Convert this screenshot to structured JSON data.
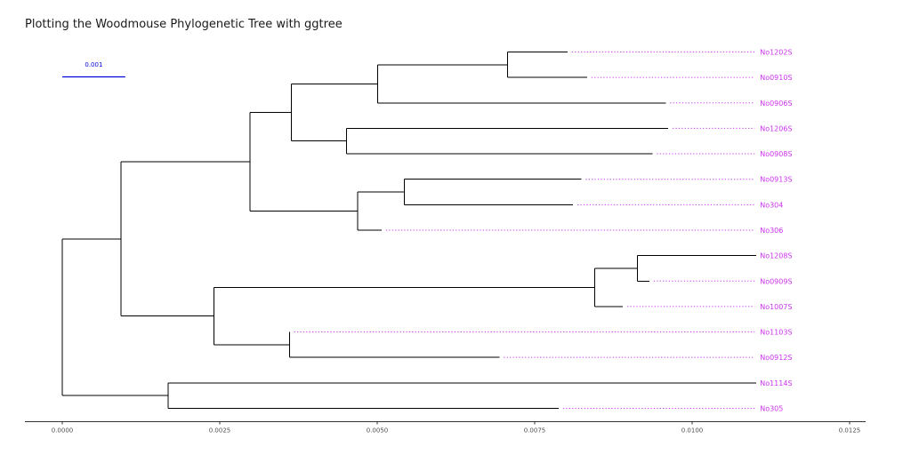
{
  "title": "Plotting the Woodmouse Phylogenetic Tree with ggtree",
  "colors": {
    "tip_label": "#cc33ee",
    "edge": "#000000",
    "scale_bar": "#0000dd",
    "axis": "#333333"
  },
  "scale_bar": {
    "label": "0.001",
    "length": 0.001
  },
  "x_axis": {
    "ticks": [
      0,
      0.0025,
      0.005,
      0.0075,
      0.01,
      0.0125
    ],
    "tick_labels": [
      "0.0000",
      "0.0025",
      "0.0050",
      "0.0075",
      "0.0100",
      "0.0125"
    ],
    "range": [
      0,
      0.0127
    ]
  },
  "chart_data": {
    "type": "phylogenetic-tree",
    "tips": [
      "No1202S",
      "No0910S",
      "No0906S",
      "No1206S",
      "No0908S",
      "No0913S",
      "No304",
      "No306",
      "No1208S",
      "No0909S",
      "No1007S",
      "No1103S",
      "No0912S",
      "No1114S",
      "No305"
    ],
    "align_x": 0.01102,
    "nodes": [
      {
        "id": "root",
        "parent": null,
        "x": 0.0
      },
      {
        "id": "A",
        "parent": "root",
        "x": 0.00093
      },
      {
        "id": "B",
        "parent": "A",
        "x": 0.00298
      },
      {
        "id": "C",
        "parent": "B",
        "x": 0.00364
      },
      {
        "id": "D",
        "parent": "C",
        "x": 0.00501
      },
      {
        "id": "E",
        "parent": "D",
        "x": 0.00707
      },
      {
        "id": "F",
        "parent": "C",
        "x": 0.00451
      },
      {
        "id": "G",
        "parent": "B",
        "x": 0.00469
      },
      {
        "id": "H",
        "parent": "G",
        "x": 0.00543
      },
      {
        "id": "I",
        "parent": "A",
        "x": 0.00241
      },
      {
        "id": "J",
        "parent": "I",
        "x": 0.00845
      },
      {
        "id": "K",
        "parent": "J",
        "x": 0.00913
      },
      {
        "id": "L",
        "parent": "I",
        "x": 0.00361
      },
      {
        "id": "M",
        "parent": "root",
        "x": 0.00168
      },
      {
        "id": "No1202S",
        "parent": "E",
        "x": 0.00802
      },
      {
        "id": "No0910S",
        "parent": "E",
        "x": 0.00833
      },
      {
        "id": "No0906S",
        "parent": "D",
        "x": 0.00958
      },
      {
        "id": "No1206S",
        "parent": "F",
        "x": 0.00962
      },
      {
        "id": "No0908S",
        "parent": "F",
        "x": 0.00937
      },
      {
        "id": "No0913S",
        "parent": "H",
        "x": 0.00824
      },
      {
        "id": "No304",
        "parent": "H",
        "x": 0.00811
      },
      {
        "id": "No306",
        "parent": "G",
        "x": 0.00507
      },
      {
        "id": "No1208S",
        "parent": "K",
        "x": 0.01102
      },
      {
        "id": "No0909S",
        "parent": "K",
        "x": 0.00932
      },
      {
        "id": "No1007S",
        "parent": "J",
        "x": 0.0089
      },
      {
        "id": "No1103S",
        "parent": "L",
        "x": 0.00361
      },
      {
        "id": "No0912S",
        "parent": "L",
        "x": 0.00694
      },
      {
        "id": "No1114S",
        "parent": "M",
        "x": 0.01102
      },
      {
        "id": "No305",
        "parent": "M",
        "x": 0.00788
      }
    ]
  }
}
